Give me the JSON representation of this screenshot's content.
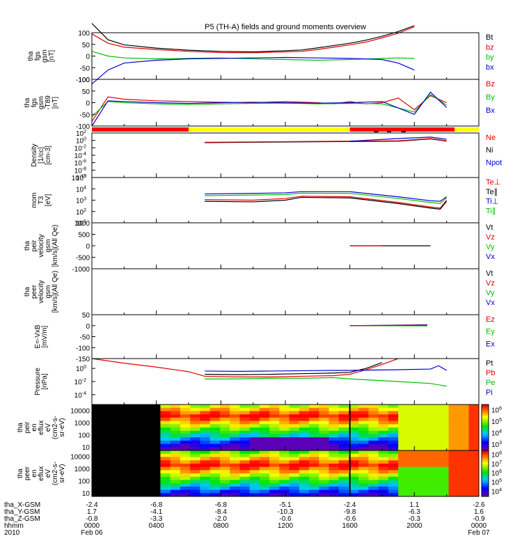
{
  "title": "P5 (TH-A) fields and ground moments overview",
  "chart_data": [
    {
      "type": "line",
      "panel": "fgs",
      "ylabel_lines": [
        "tha",
        "fgs",
        "gsm",
        "[nT]"
      ],
      "ylim": [
        -100,
        100
      ],
      "yticks": [
        100,
        50,
        0,
        -50,
        -100
      ],
      "legend": [
        {
          "name": "Bt",
          "color": "#000000"
        },
        {
          "name": "bz",
          "color": "#e00000"
        },
        {
          "name": "by",
          "color": "#00c000"
        },
        {
          "name": "bx",
          "color": "#0000d0"
        }
      ],
      "series": [
        {
          "name": "Bt",
          "color": "#000000",
          "x": [
            0,
            1,
            2,
            4,
            6,
            8,
            10,
            12,
            13,
            14,
            15,
            16,
            17,
            18,
            19,
            20
          ],
          "y": [
            140,
            70,
            48,
            34,
            25,
            20,
            18,
            23,
            26,
            35,
            45,
            55,
            68,
            85,
            105,
            130
          ]
        },
        {
          "name": "bz",
          "color": "#e00000",
          "x": [
            0,
            1,
            2,
            4,
            6,
            8,
            10,
            12,
            13,
            14,
            15,
            16,
            17,
            18,
            19,
            20
          ],
          "y": [
            95,
            55,
            38,
            28,
            20,
            15,
            14,
            18,
            20,
            28,
            38,
            48,
            60,
            78,
            98,
            125
          ]
        },
        {
          "name": "by",
          "color": "#00c000",
          "x": [
            0,
            1,
            2,
            4,
            6,
            8,
            10,
            12,
            14,
            16,
            18,
            19,
            20
          ],
          "y": [
            20,
            0,
            -8,
            -12,
            -10,
            -8,
            -12,
            -15,
            -18,
            -15,
            -10,
            -8,
            -10
          ]
        },
        {
          "name": "bx",
          "color": "#0000d0",
          "x": [
            0,
            1,
            2,
            4,
            6,
            8,
            10,
            12,
            14,
            16,
            18,
            19,
            20
          ],
          "y": [
            -120,
            -60,
            -30,
            -18,
            -12,
            -10,
            -8,
            -6,
            -8,
            -10,
            -15,
            -30,
            -60
          ]
        }
      ]
    },
    {
      "type": "line",
      "panel": "fgs-t89",
      "ylabel_lines": [
        "tha",
        "fgs",
        "gsm",
        "-T89",
        "[nT]"
      ],
      "ylim": [
        -100,
        100
      ],
      "yticks": [
        100,
        50,
        0,
        -50,
        -100
      ],
      "legend": [
        {
          "name": "Bz",
          "color": "#e00000"
        },
        {
          "name": "By",
          "color": "#00c000"
        },
        {
          "name": "Bx",
          "color": "#0000d0"
        }
      ],
      "series": [
        {
          "name": "Bz",
          "color": "#e00000",
          "x": [
            0,
            1,
            2,
            4,
            6,
            8,
            10,
            12,
            14,
            15,
            16,
            17,
            18,
            19,
            20,
            21,
            22
          ],
          "y": [
            -80,
            25,
            15,
            8,
            5,
            2,
            0,
            5,
            0,
            -5,
            5,
            -5,
            0,
            20,
            -30,
            30,
            0
          ]
        },
        {
          "name": "By",
          "color": "#00c000",
          "x": [
            0,
            1,
            2,
            4,
            6,
            8,
            10,
            12,
            14,
            16,
            18,
            20,
            21,
            22
          ],
          "y": [
            -60,
            5,
            0,
            -5,
            -8,
            -5,
            -3,
            -2,
            -5,
            -3,
            -5,
            -40,
            35,
            -10
          ]
        },
        {
          "name": "Bx",
          "color": "#0000d0",
          "x": [
            0,
            1,
            2,
            4,
            6,
            8,
            10,
            12,
            14,
            16,
            18,
            20,
            21,
            22
          ],
          "y": [
            -100,
            8,
            5,
            0,
            -3,
            0,
            2,
            0,
            -2,
            0,
            5,
            -50,
            45,
            -20
          ]
        }
      ]
    },
    {
      "type": "line",
      "panel": "density",
      "ylabel_lines": [
        "Density",
        "[1/cc]",
        "[cm-3]"
      ],
      "yscale": "log",
      "ylim_exp": [
        -10,
        2
      ],
      "ytick_exps": [
        2,
        0,
        -2,
        -4,
        -6,
        -8,
        -10
      ],
      "legend": [
        {
          "name": "Ne",
          "color": "#e00000"
        },
        {
          "name": "Ni",
          "color": "#000000"
        },
        {
          "name": "Npot",
          "color": "#0000d0"
        }
      ],
      "series": [
        {
          "name": "Ni",
          "color": "#000000",
          "x": [
            7,
            10,
            13,
            16,
            19,
            21,
            22
          ],
          "y_exp": [
            -0.6,
            -0.5,
            -0.4,
            -0.3,
            -0.2,
            0.4,
            -0.2
          ]
        },
        {
          "name": "Ne",
          "color": "#e00000",
          "x": [
            7,
            10,
            13,
            16,
            19,
            21,
            22
          ],
          "y_exp": [
            -0.5,
            -0.4,
            -0.3,
            -0.2,
            -0.1,
            0.5,
            -0.1
          ]
        },
        {
          "name": "Npot",
          "color": "#0000d0",
          "x": [
            16,
            19,
            21,
            22
          ],
          "y_exp": [
            -0.2,
            0.5,
            0.9,
            0.3
          ]
        }
      ]
    },
    {
      "type": "line",
      "panel": "temperature",
      "ylabel_lines": [
        "mom",
        "T3",
        "[eV]"
      ],
      "yscale": "log",
      "ylim_exp": [
        1,
        5
      ],
      "ytick_exps": [
        5,
        4,
        3,
        2,
        1
      ],
      "legend": [
        {
          "name": "Te⊥",
          "color": "#e00000"
        },
        {
          "name": "Te∥",
          "color": "#000000"
        },
        {
          "name": "Ti⊥",
          "color": "#0000d0"
        },
        {
          "name": "Ti∥",
          "color": "#00c000"
        }
      ],
      "series": [
        {
          "name": "Ti⊥",
          "color": "#0000d0",
          "x": [
            7,
            10,
            12,
            13,
            16,
            19,
            21,
            21.6,
            22
          ],
          "y_exp": [
            3.55,
            3.6,
            3.65,
            3.75,
            3.75,
            3.3,
            2.95,
            2.9,
            3.3
          ]
        },
        {
          "name": "Ti∥",
          "color": "#00c000",
          "x": [
            7,
            10,
            12,
            13,
            16,
            19,
            21,
            21.6,
            22
          ],
          "y_exp": [
            3.4,
            3.45,
            3.5,
            3.62,
            3.6,
            3.15,
            2.8,
            2.7,
            3.2
          ]
        },
        {
          "name": "Te⊥",
          "color": "#e00000",
          "x": [
            7,
            10,
            12,
            13,
            16,
            19,
            21,
            21.6,
            22
          ],
          "y_exp": [
            3.05,
            3.0,
            3.15,
            3.35,
            3.3,
            2.8,
            2.4,
            2.3,
            3.0
          ]
        },
        {
          "name": "Te∥",
          "color": "#000000",
          "x": [
            7,
            10,
            12,
            13,
            16,
            19,
            21,
            21.6,
            22
          ],
          "y_exp": [
            2.9,
            2.85,
            3.0,
            3.25,
            3.2,
            2.7,
            2.3,
            2.2,
            2.9
          ]
        }
      ]
    },
    {
      "type": "line",
      "panel": "peir-velocity",
      "ylabel_lines": [
        "tha",
        "peir",
        "velocity",
        "gsm",
        "[km/s](All Qe)"
      ],
      "ylim": [
        -1000,
        1000
      ],
      "yticks": [
        1000,
        500,
        0,
        -500,
        -1000
      ],
      "legend": [
        {
          "name": "Vt",
          "color": "#000000"
        },
        {
          "name": "Vz",
          "color": "#e00000"
        },
        {
          "name": "Vy",
          "color": "#00c000"
        },
        {
          "name": "Vx",
          "color": "#0000d0"
        }
      ],
      "series": [
        {
          "name": "Vt",
          "color": "#000000",
          "x": [
            16,
            21
          ],
          "y": [
            0,
            0
          ]
        },
        {
          "name": "Vz",
          "color": "#e00000",
          "x": [
            16,
            18
          ],
          "y": [
            0,
            0
          ]
        }
      ]
    },
    {
      "type": "line",
      "panel": "peer-velocity",
      "ylabel_lines": [
        "tha",
        "peer",
        "velocity",
        "gsm",
        "[km/s](All Qe)"
      ],
      "ylim": [
        -1000,
        1000
      ],
      "yticks": [],
      "legend": [
        {
          "name": "Vt",
          "color": "#000000"
        },
        {
          "name": "Vz",
          "color": "#e00000"
        },
        {
          "name": "Vy",
          "color": "#00c000"
        },
        {
          "name": "Vx",
          "color": "#0000d0"
        }
      ],
      "series": []
    },
    {
      "type": "line",
      "panel": "efield",
      "ylabel_lines": [
        "E=-VxB",
        "[mV/m]"
      ],
      "ylim": [
        -150,
        50
      ],
      "yticks": [
        50,
        0,
        -50,
        -100,
        -150
      ],
      "legend": [
        {
          "name": "Ez",
          "color": "#e00000"
        },
        {
          "name": "Ey",
          "color": "#00c000"
        },
        {
          "name": "Ex",
          "color": "#0000d0"
        }
      ],
      "series": [
        {
          "name": "Ex",
          "color": "#0000d0",
          "x": [
            16,
            20.8
          ],
          "y": [
            0,
            4
          ]
        },
        {
          "name": "Ey",
          "color": "#00c000",
          "x": [
            16,
            20.8
          ],
          "y": [
            0,
            -1
          ]
        },
        {
          "name": "Ez",
          "color": "#e00000",
          "x": [
            16,
            20.8
          ],
          "y": [
            0,
            2
          ]
        }
      ]
    },
    {
      "type": "line",
      "panel": "pressure",
      "ylabel_lines": [
        "Pressure",
        "[nPa]"
      ],
      "yscale": "log",
      "ylim_exp": [
        -5.5,
        1.5
      ],
      "ytick_exps": [
        0,
        -2,
        -4
      ],
      "legend": [
        {
          "name": "Pt",
          "color": "#000000"
        },
        {
          "name": "Pb",
          "color": "#e00000"
        },
        {
          "name": "Pe",
          "color": "#00c000"
        },
        {
          "name": "Pi",
          "color": "#0000d0"
        }
      ],
      "series": [
        {
          "name": "Pb",
          "color": "#e00000",
          "x": [
            0,
            2,
            4,
            6,
            7,
            9,
            11,
            13,
            15,
            16,
            17,
            18,
            19
          ],
          "y_exp": [
            1.5,
            0.8,
            0.2,
            -0.5,
            -1.2,
            -1.3,
            -1.3,
            -1.2,
            -1.1,
            -0.9,
            -0.2,
            0.6,
            1.5
          ]
        },
        {
          "name": "Pt",
          "color": "#000000",
          "x": [
            7,
            9,
            11,
            13,
            15,
            16,
            17,
            18
          ],
          "y_exp": [
            -0.9,
            -0.95,
            -0.9,
            -0.8,
            -0.7,
            -0.6,
            0.0,
            0.9
          ]
        },
        {
          "name": "Pi",
          "color": "#0000d0",
          "x": [
            7,
            9,
            11,
            13,
            15,
            16,
            19,
            21,
            21.5,
            22
          ],
          "y_exp": [
            -0.4,
            -0.45,
            -0.4,
            -0.35,
            -0.3,
            -0.3,
            -0.2,
            -0.1,
            0.4,
            -0.3
          ]
        },
        {
          "name": "Pe",
          "color": "#00c000",
          "x": [
            7,
            9,
            11,
            13,
            15,
            16,
            19,
            21,
            22
          ],
          "y_exp": [
            -1.6,
            -1.6,
            -1.5,
            -1.5,
            -1.4,
            -1.6,
            -2.0,
            -2.3,
            -2.7
          ]
        }
      ]
    },
    {
      "type": "heatmap",
      "panel": "peir-en-eflux",
      "ylabel_lines": [
        "tha",
        "peir",
        "en",
        "eflux",
        "eV",
        "(cm2-s-",
        "sr-eV)"
      ],
      "yscale": "log",
      "yticks": [
        10000,
        1000,
        100,
        10
      ],
      "colorbar_exps": [
        4,
        5,
        6,
        7,
        8
      ],
      "colorbar_exp_labels": [
        3,
        4,
        5,
        6
      ],
      "fill_start_hour": 4.25,
      "gap_start_hour": 19.0
    },
    {
      "type": "heatmap",
      "panel": "peer-en-eflux",
      "ylabel_lines": [
        "tha",
        "peer",
        "en",
        "eflux",
        "eV",
        "(cm2-s-",
        "sr-eV)"
      ],
      "yscale": "log",
      "yticks": [
        10000,
        1000,
        100,
        10
      ],
      "colorbar_exp_labels": [
        4,
        5,
        6,
        7,
        8
      ],
      "fill_start_hour": 4.25,
      "gap_start_hour": 19.0
    }
  ],
  "mode_bar": [
    {
      "from": 0,
      "to": 6,
      "color": "#ff0000"
    },
    {
      "from": 6,
      "to": 16,
      "color": "#ffff00"
    },
    {
      "from": 16,
      "to": 22.5,
      "color": "#ff0000"
    },
    {
      "from": 22.5,
      "to": 24,
      "color": "#ffff00"
    }
  ],
  "xaxis": {
    "labels": [
      "tha_X-GSM",
      "tha_Y-GSM",
      "tha_Z-GSM",
      "hhmm",
      "2010"
    ],
    "ticks": [
      {
        "hour": 0,
        "x": "-2.4",
        "y": "1.7",
        "z": "-0.8",
        "t": "0000",
        "d": "Feb 06"
      },
      {
        "hour": 4,
        "x": "-6.8",
        "y": "-4.1",
        "z": "-3.3",
        "t": "0400",
        "d": ""
      },
      {
        "hour": 8,
        "x": "-6.8",
        "y": "-8.4",
        "z": "-2.0",
        "t": "0800",
        "d": ""
      },
      {
        "hour": 12,
        "x": "-5.1",
        "y": "-10.3",
        "z": "-0.6",
        "t": "1200",
        "d": ""
      },
      {
        "hour": 16,
        "x": "-2.4",
        "y": "-9.8",
        "z": "-0.6",
        "t": "1600",
        "d": ""
      },
      {
        "hour": 20,
        "x": "1.1",
        "y": "-6.3",
        "z": "-0.3",
        "t": "2000",
        "d": ""
      },
      {
        "hour": 24,
        "x": "-2.6",
        "y": "1.6",
        "z": "-0.9",
        "t": "0000",
        "d": "Feb 07"
      }
    ]
  }
}
